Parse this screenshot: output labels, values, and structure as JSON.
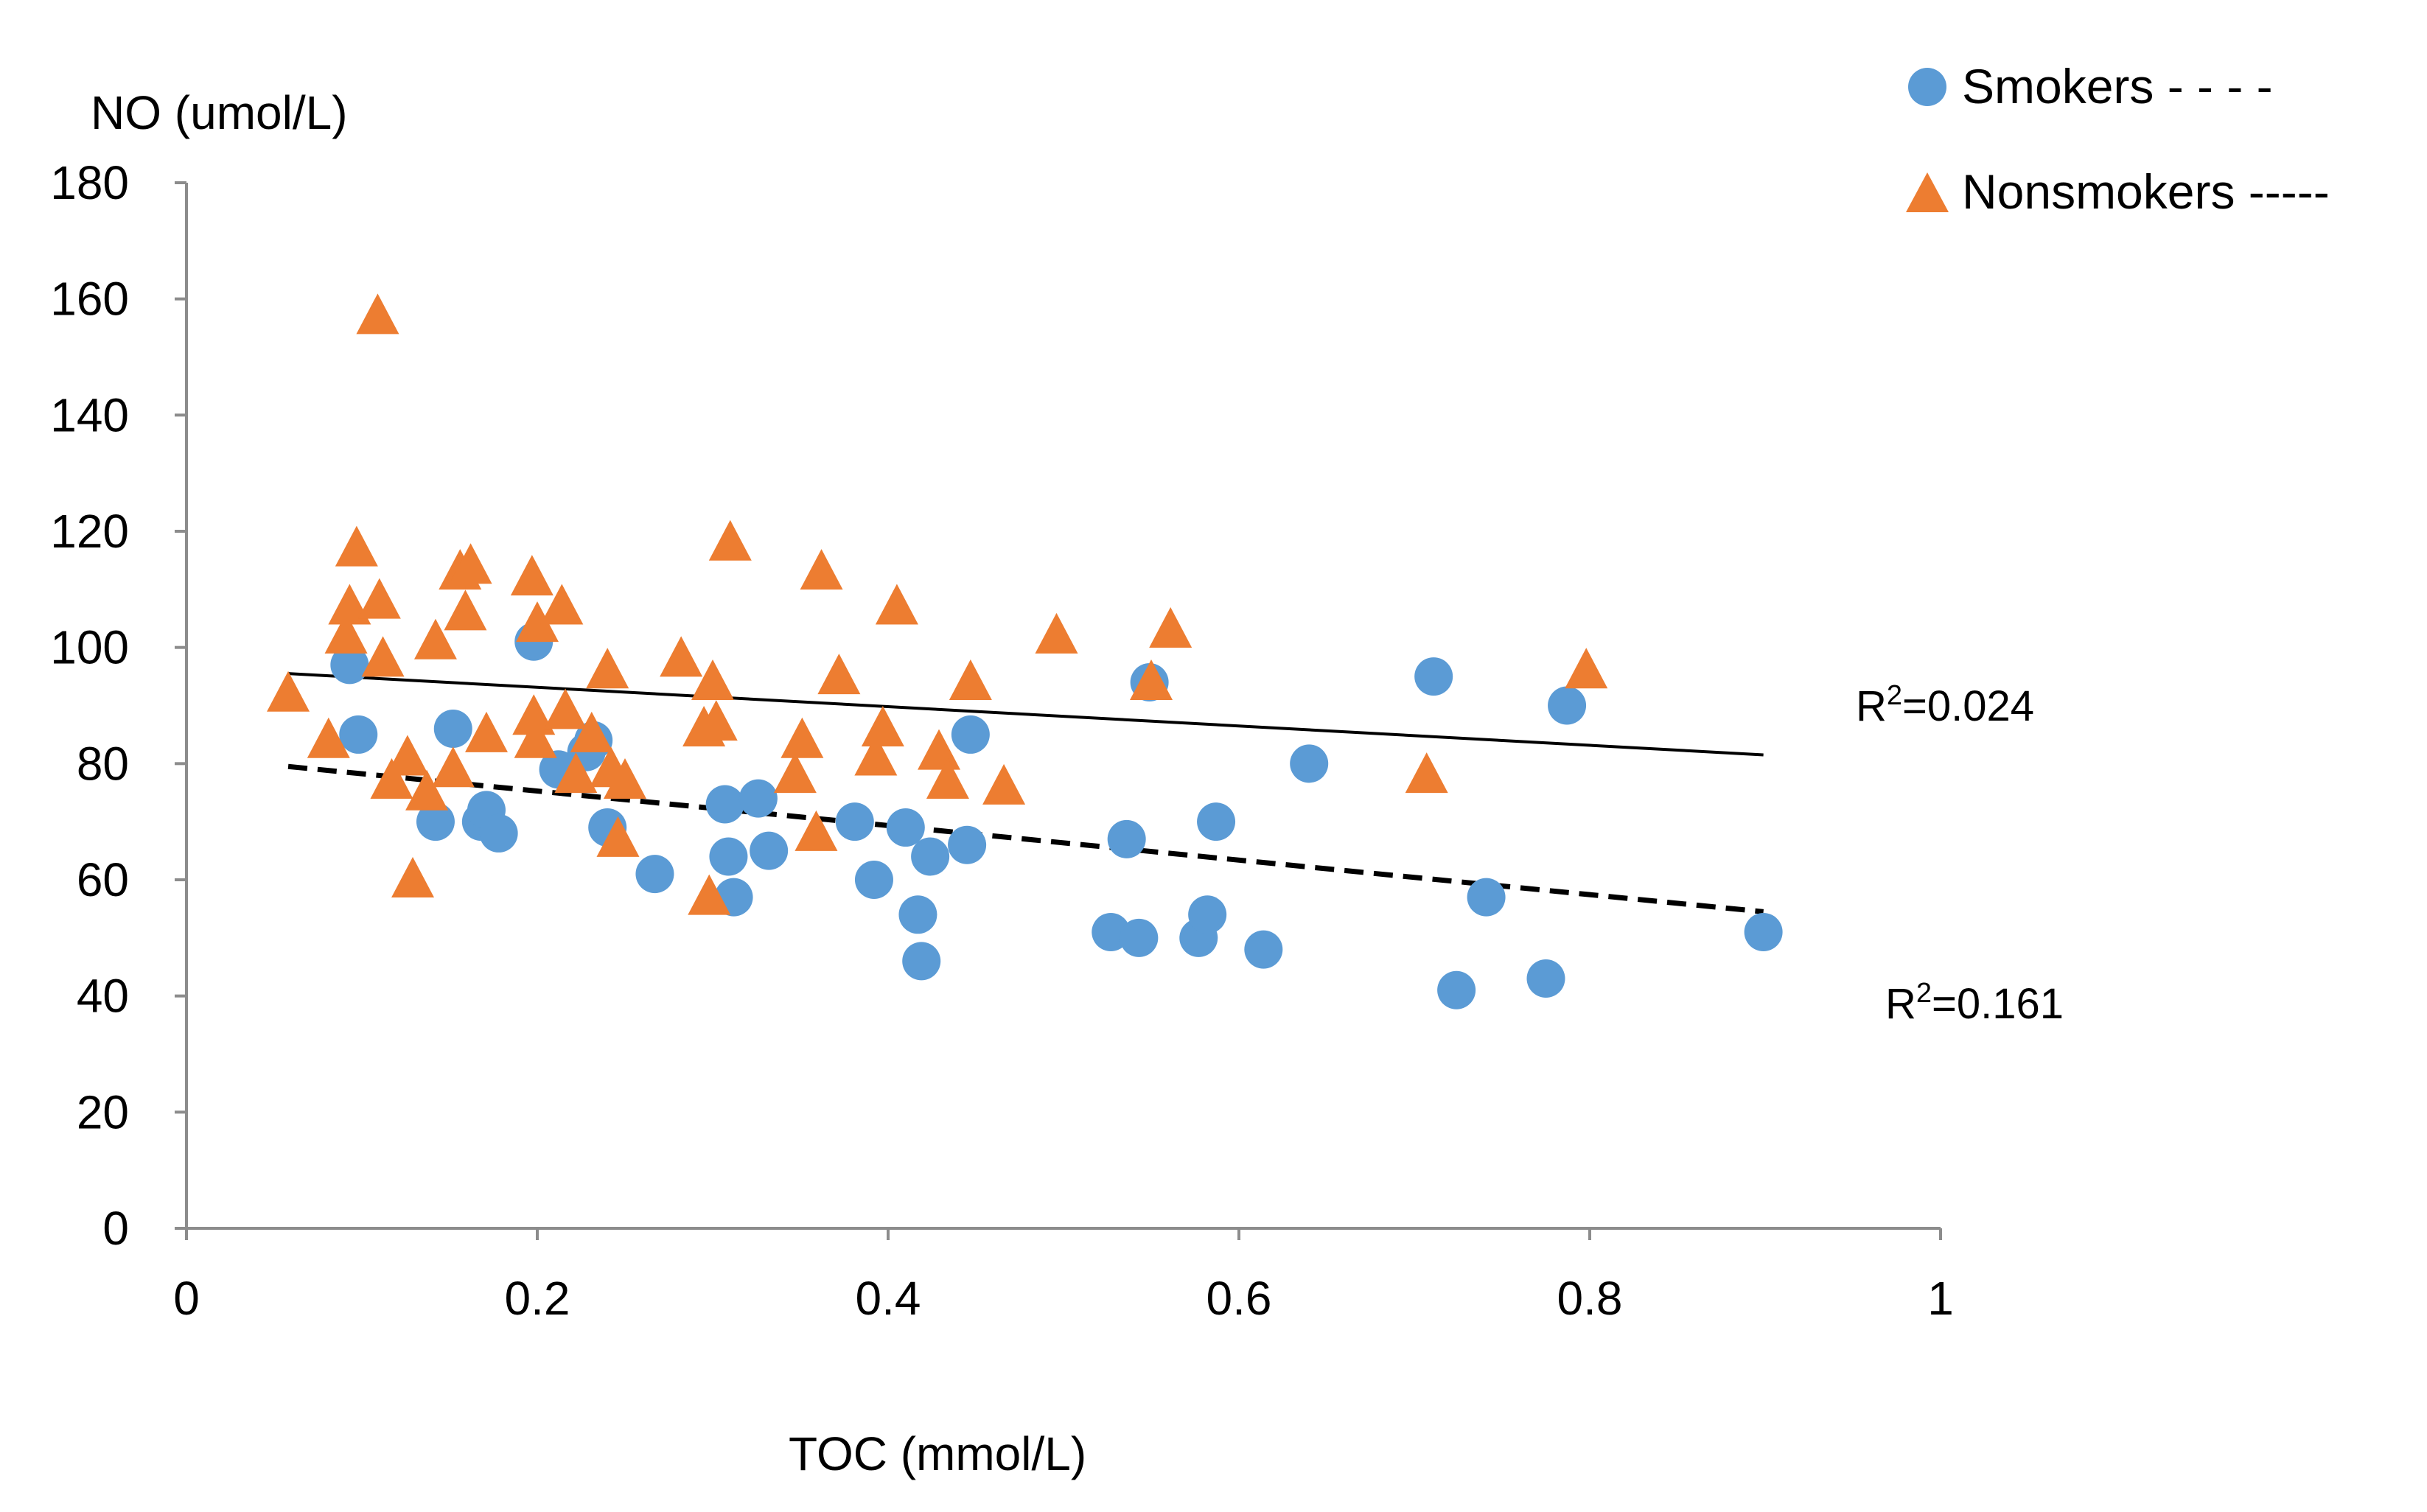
{
  "chart_data": {
    "type": "scatter",
    "title": "",
    "xlabel": "TOC (mmol/L)",
    "ylabel": "NO (umol/L)",
    "xlim": [
      0,
      1
    ],
    "ylim": [
      0,
      180
    ],
    "xticks": [
      0,
      0.2,
      0.4,
      0.6,
      0.8,
      1
    ],
    "xtick_labels": [
      "0",
      "0.2",
      "0.4",
      "0.6",
      "0.8",
      "1"
    ],
    "yticks": [
      0,
      20,
      40,
      60,
      80,
      100,
      120,
      140,
      160,
      180
    ],
    "ytick_labels": [
      "0",
      "20",
      "40",
      "60",
      "80",
      "100",
      "120",
      "140",
      "160",
      "180"
    ],
    "grid": false,
    "legend_position": "top-right",
    "series": [
      {
        "name": "Smokers",
        "legend_label": "Smokers - - - -",
        "marker": "circle",
        "color": "#5B9BD5",
        "points": [
          [
            0.093,
            97
          ],
          [
            0.098,
            85
          ],
          [
            0.142,
            70
          ],
          [
            0.152,
            86
          ],
          [
            0.168,
            70
          ],
          [
            0.171,
            72
          ],
          [
            0.178,
            68
          ],
          [
            0.198,
            101
          ],
          [
            0.212,
            79
          ],
          [
            0.228,
            82
          ],
          [
            0.232,
            84
          ],
          [
            0.24,
            69
          ],
          [
            0.267,
            61
          ],
          [
            0.307,
            73
          ],
          [
            0.309,
            64
          ],
          [
            0.312,
            57
          ],
          [
            0.326,
            74
          ],
          [
            0.332,
            65
          ],
          [
            0.381,
            70
          ],
          [
            0.392,
            60
          ],
          [
            0.41,
            69
          ],
          [
            0.417,
            54
          ],
          [
            0.419,
            46
          ],
          [
            0.424,
            64
          ],
          [
            0.445,
            66
          ],
          [
            0.447,
            85
          ],
          [
            0.527,
            51
          ],
          [
            0.536,
            67
          ],
          [
            0.543,
            50
          ],
          [
            0.549,
            94
          ],
          [
            0.577,
            50
          ],
          [
            0.582,
            54
          ],
          [
            0.587,
            70
          ],
          [
            0.614,
            48
          ],
          [
            0.64,
            80
          ],
          [
            0.711,
            95
          ],
          [
            0.724,
            41
          ],
          [
            0.741,
            57
          ],
          [
            0.775,
            43
          ],
          [
            0.787,
            90
          ],
          [
            0.899,
            51
          ]
        ],
        "trendline": {
          "style": "dashed",
          "start": [
            0.058,
            79.5
          ],
          "end": [
            0.899,
            54.5
          ],
          "label": "R²=0.161",
          "r2_prefix": "R",
          "r2_sup": "2",
          "r2_value": "=0.161"
        }
      },
      {
        "name": "Nonsmokers",
        "legend_label": "Nonsmokers -----",
        "marker": "triangle",
        "color": "#ED7D31",
        "points": [
          [
            0.058,
            92
          ],
          [
            0.081,
            84
          ],
          [
            0.091,
            102
          ],
          [
            0.093,
            107
          ],
          [
            0.097,
            117
          ],
          [
            0.109,
            157
          ],
          [
            0.11,
            108
          ],
          [
            0.112,
            98
          ],
          [
            0.117,
            77
          ],
          [
            0.126,
            81
          ],
          [
            0.129,
            60
          ],
          [
            0.137,
            75
          ],
          [
            0.142,
            101
          ],
          [
            0.152,
            79
          ],
          [
            0.156,
            113
          ],
          [
            0.159,
            106
          ],
          [
            0.162,
            114
          ],
          [
            0.171,
            85
          ],
          [
            0.197,
            112
          ],
          [
            0.198,
            88
          ],
          [
            0.199,
            84
          ],
          [
            0.2,
            104
          ],
          [
            0.214,
            107
          ],
          [
            0.216,
            89
          ],
          [
            0.222,
            78
          ],
          [
            0.231,
            85
          ],
          [
            0.24,
            96
          ],
          [
            0.242,
            79
          ],
          [
            0.246,
            67
          ],
          [
            0.25,
            77
          ],
          [
            0.282,
            98
          ],
          [
            0.295,
            86
          ],
          [
            0.298,
            57
          ],
          [
            0.3,
            94
          ],
          [
            0.302,
            87
          ],
          [
            0.31,
            118
          ],
          [
            0.347,
            78
          ],
          [
            0.351,
            84
          ],
          [
            0.359,
            68
          ],
          [
            0.362,
            113
          ],
          [
            0.372,
            95
          ],
          [
            0.393,
            81
          ],
          [
            0.397,
            86
          ],
          [
            0.405,
            107
          ],
          [
            0.429,
            82
          ],
          [
            0.434,
            77
          ],
          [
            0.447,
            94
          ],
          [
            0.466,
            76
          ],
          [
            0.496,
            102
          ],
          [
            0.55,
            94
          ],
          [
            0.561,
            103
          ],
          [
            0.707,
            78
          ],
          [
            0.798,
            96
          ]
        ],
        "trendline": {
          "style": "solid",
          "start": [
            0.058,
            95.5
          ],
          "end": [
            0.899,
            81.5
          ],
          "label": "R²=0.024",
          "r2_prefix": "R",
          "r2_sup": "2",
          "r2_value": "=0.024"
        }
      }
    ]
  }
}
